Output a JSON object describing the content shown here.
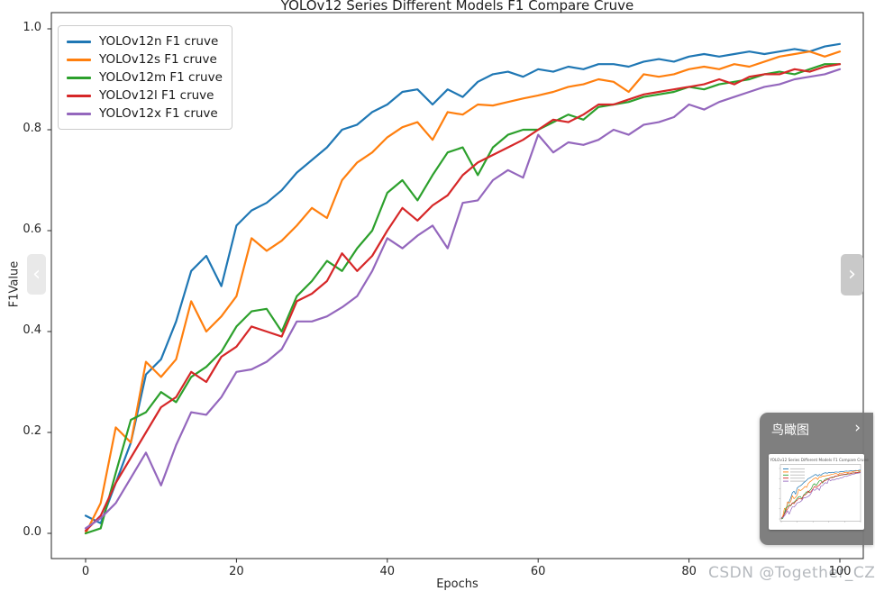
{
  "chart_data": {
    "type": "line",
    "title": "YOLOv12 Series Different Models F1 Compare Cruve",
    "xlabel": "Epochs",
    "ylabel": "F1Value",
    "x_ticks": [
      "0",
      "20",
      "40",
      "60",
      "80",
      "100"
    ],
    "y_ticks": [
      "0.0",
      "0.2",
      "0.4",
      "0.6",
      "0.8",
      "1.0"
    ],
    "xlim": [
      -4.5,
      103.2
    ],
    "ylim": [
      -0.05,
      1.032
    ],
    "grid": false,
    "legend_position": "upper left",
    "x": [
      0,
      2,
      4,
      6,
      8,
      10,
      12,
      14,
      16,
      18,
      20,
      22,
      24,
      26,
      28,
      30,
      32,
      34,
      36,
      38,
      40,
      42,
      44,
      46,
      48,
      50,
      52,
      54,
      56,
      58,
      60,
      62,
      64,
      66,
      68,
      70,
      72,
      74,
      76,
      78,
      80,
      82,
      84,
      86,
      88,
      90,
      92,
      94,
      96,
      98,
      100
    ],
    "series": [
      {
        "name": "YOLOv12n F1 cruve",
        "color": "#1f77b4",
        "values": [
          0.035,
          0.02,
          0.1,
          0.18,
          0.315,
          0.345,
          0.42,
          0.52,
          0.55,
          0.49,
          0.61,
          0.64,
          0.655,
          0.68,
          0.715,
          0.74,
          0.765,
          0.8,
          0.81,
          0.835,
          0.85,
          0.875,
          0.88,
          0.85,
          0.88,
          0.865,
          0.895,
          0.91,
          0.915,
          0.905,
          0.92,
          0.915,
          0.925,
          0.92,
          0.93,
          0.93,
          0.925,
          0.935,
          0.94,
          0.935,
          0.945,
          0.95,
          0.945,
          0.95,
          0.955,
          0.95,
          0.955,
          0.96,
          0.955,
          0.965,
          0.97
        ]
      },
      {
        "name": "YOLOv12s F1 cruve",
        "color": "#ff7f0e",
        "values": [
          0.0,
          0.06,
          0.21,
          0.18,
          0.34,
          0.31,
          0.345,
          0.46,
          0.4,
          0.43,
          0.47,
          0.585,
          0.56,
          0.58,
          0.61,
          0.645,
          0.625,
          0.7,
          0.735,
          0.755,
          0.785,
          0.805,
          0.815,
          0.78,
          0.835,
          0.83,
          0.85,
          0.848,
          0.855,
          0.862,
          0.868,
          0.875,
          0.885,
          0.89,
          0.9,
          0.895,
          0.875,
          0.91,
          0.905,
          0.91,
          0.92,
          0.925,
          0.92,
          0.93,
          0.925,
          0.935,
          0.945,
          0.95,
          0.955,
          0.945,
          0.955
        ]
      },
      {
        "name": "YOLOv12m F1 cruve",
        "color": "#2ca02c",
        "values": [
          0.0,
          0.01,
          0.12,
          0.225,
          0.24,
          0.28,
          0.26,
          0.31,
          0.33,
          0.36,
          0.41,
          0.44,
          0.445,
          0.4,
          0.47,
          0.5,
          0.54,
          0.52,
          0.565,
          0.6,
          0.675,
          0.7,
          0.66,
          0.71,
          0.755,
          0.765,
          0.71,
          0.765,
          0.79,
          0.8,
          0.8,
          0.815,
          0.83,
          0.82,
          0.845,
          0.85,
          0.855,
          0.865,
          0.87,
          0.875,
          0.885,
          0.88,
          0.89,
          0.895,
          0.9,
          0.91,
          0.915,
          0.91,
          0.92,
          0.93,
          0.93
        ]
      },
      {
        "name": "YOLOv12l F1 cruve",
        "color": "#d62728",
        "values": [
          0.005,
          0.035,
          0.1,
          0.15,
          0.2,
          0.25,
          0.27,
          0.32,
          0.3,
          0.35,
          0.37,
          0.41,
          0.4,
          0.39,
          0.46,
          0.475,
          0.5,
          0.555,
          0.52,
          0.55,
          0.6,
          0.645,
          0.62,
          0.65,
          0.67,
          0.71,
          0.735,
          0.75,
          0.765,
          0.78,
          0.8,
          0.82,
          0.815,
          0.83,
          0.85,
          0.85,
          0.86,
          0.87,
          0.875,
          0.88,
          0.885,
          0.89,
          0.9,
          0.89,
          0.905,
          0.91,
          0.91,
          0.92,
          0.915,
          0.925,
          0.93
        ]
      },
      {
        "name": "YOLOv12x F1 cruve",
        "color": "#9467bd",
        "values": [
          0.01,
          0.03,
          0.06,
          0.11,
          0.16,
          0.095,
          0.175,
          0.24,
          0.235,
          0.27,
          0.32,
          0.325,
          0.34,
          0.365,
          0.42,
          0.42,
          0.43,
          0.448,
          0.47,
          0.52,
          0.585,
          0.565,
          0.59,
          0.61,
          0.565,
          0.655,
          0.66,
          0.7,
          0.72,
          0.705,
          0.79,
          0.755,
          0.775,
          0.77,
          0.78,
          0.8,
          0.79,
          0.81,
          0.815,
          0.825,
          0.85,
          0.84,
          0.855,
          0.865,
          0.875,
          0.885,
          0.89,
          0.9,
          0.905,
          0.91,
          0.92
        ]
      }
    ]
  },
  "overlays": {
    "carousel_prev": "‹",
    "carousel_next": "›",
    "birdseye": {
      "title": "鸟瞰图",
      "collapse_icon": "›"
    },
    "watermark": "CSDN @Together_CZ"
  }
}
